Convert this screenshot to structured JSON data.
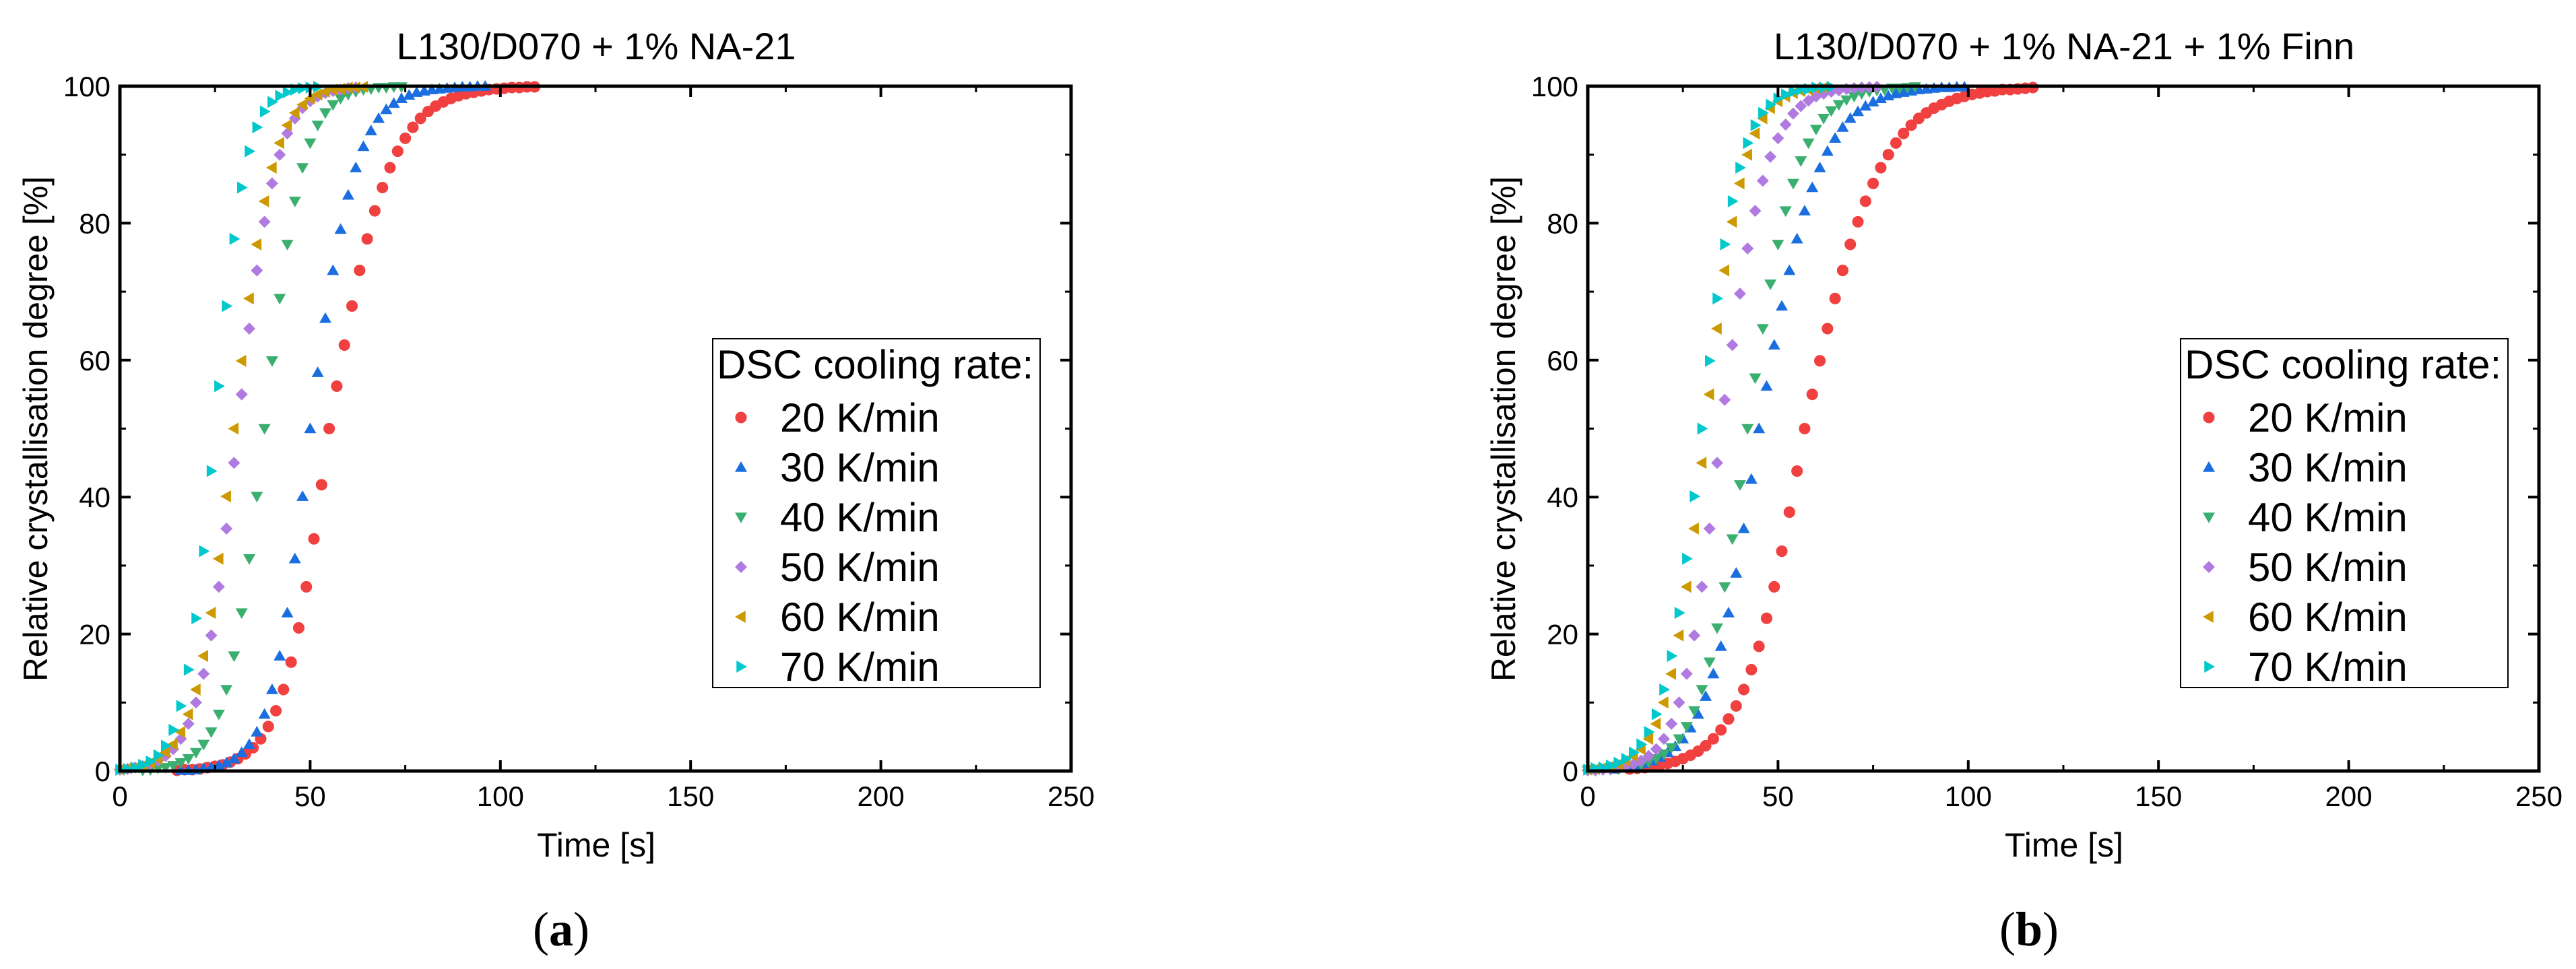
{
  "colors": {
    "20": "#f04040",
    "30": "#1a6ee0",
    "40": "#3aaf6f",
    "50": "#b07ae0",
    "60": "#cc9a00",
    "70": "#00c8cc"
  },
  "chart_data": [
    {
      "type": "scatter",
      "panel_label": "a",
      "title": "L130/D070 + 1% NA-21",
      "xlabel": "Time [s]",
      "ylabel": "Relative crystallisation degree [%]",
      "xlim": [
        0,
        250
      ],
      "ylim": [
        0,
        100
      ],
      "xticks": [
        "0",
        "50",
        "100",
        "150",
        "200",
        "250"
      ],
      "yticks": [
        "0",
        "20",
        "40",
        "60",
        "80",
        "100"
      ],
      "grid": false,
      "legend_title": "DSC cooling rate:",
      "legend_position": "center-right",
      "series": [
        {
          "name": "20 K/min",
          "marker": "circle",
          "color_key": "20",
          "x_start": 15,
          "x_step": 2,
          "y": [
            0.1,
            0.2,
            0.2,
            0.3,
            0.5,
            0.7,
            0.9,
            1.3,
            1.8,
            2.5,
            3.4,
            4.7,
            6.5,
            8.8,
            11.9,
            15.9,
            20.9,
            26.9,
            33.9,
            41.8,
            50,
            56.2,
            62.2,
            67.9,
            73.1,
            77.7,
            81.8,
            85.2,
            88.1,
            90.5,
            92.4,
            94.0,
            95.3,
            96.3,
            97.1,
            97.7,
            98.2,
            98.6,
            98.9,
            99.1,
            99.3,
            99.5,
            99.6,
            99.7,
            99.8,
            99.8,
            99.9,
            99.9
          ]
        },
        {
          "name": "30 K/min",
          "marker": "triangle-up",
          "color_key": "30",
          "x_start": 16,
          "x_step": 2,
          "y": [
            0.1,
            0.1,
            0.2,
            0.4,
            0.5,
            0.8,
            1.2,
            1.8,
            2.7,
            3.9,
            5.7,
            8.3,
            11.9,
            16.8,
            23.1,
            31.0,
            40.1,
            50,
            58.2,
            66.1,
            73.1,
            79.1,
            84.1,
            88.1,
            91.2,
            93.5,
            95.3,
            96.6,
            97.5,
            98.2,
            98.7,
            99.1,
            99.3,
            99.5,
            99.6,
            99.7,
            99.8,
            99.9,
            99.9,
            100,
            100
          ]
        },
        {
          "name": "40 K/min",
          "marker": "triangle-down",
          "color_key": "40",
          "x_start": 6,
          "x_step": 2,
          "y": [
            0.1,
            0.2,
            0.4,
            0.5,
            0.8,
            1.2,
            1.8,
            2.7,
            3.9,
            5.7,
            8.3,
            11.9,
            16.8,
            23.1,
            31.0,
            40.1,
            50,
            59.9,
            69.0,
            76.9,
            83.2,
            88.1,
            91.7,
            94.3,
            96.1,
            97.3,
            98.2,
            98.8,
            99.2,
            99.5,
            99.6,
            99.8,
            99.8,
            99.9,
            99.9
          ]
        },
        {
          "name": "50 K/min",
          "marker": "diamond",
          "color_key": "50",
          "x_start": 0,
          "x_step": 2,
          "y": [
            0.2,
            0.3,
            0.5,
            0.7,
            1.0,
            1.5,
            2.2,
            3.2,
            4.7,
            6.9,
            10.0,
            14.2,
            19.8,
            26.9,
            35.4,
            45.0,
            55.0,
            64.6,
            73.1,
            80.2,
            85.8,
            90.0,
            93.1,
            95.3,
            96.8,
            97.8,
            98.5,
            99.0,
            99.3,
            99.5,
            99.7,
            99.8
          ]
        },
        {
          "name": "60 K/min",
          "marker": "triangle-left",
          "color_key": "60",
          "x_start": 0,
          "x_step": 2,
          "y": [
            0.2,
            0.4,
            0.5,
            0.8,
            1.2,
            1.8,
            2.7,
            3.9,
            5.7,
            8.3,
            11.9,
            16.8,
            23.1,
            31.0,
            40.1,
            50,
            59.9,
            69.0,
            76.9,
            83.2,
            88.1,
            91.7,
            94.3,
            96.1,
            97.3,
            98.2,
            98.8,
            99.2,
            99.5,
            99.6,
            99.8,
            99.8,
            99.9
          ]
        },
        {
          "name": "70 K/min",
          "marker": "triangle-right",
          "color_key": "70",
          "x_start": 0,
          "x_step": 2,
          "y": [
            0.2,
            0.3,
            0.5,
            0.9,
            1.4,
            2.3,
            3.7,
            6.0,
            9.5,
            14.8,
            22.3,
            32.1,
            43.8,
            56.2,
            67.9,
            77.7,
            85.2,
            90.5,
            94.0,
            96.3,
            97.7,
            98.6,
            99.1,
            99.5,
            99.7,
            99.8,
            99.9
          ]
        }
      ]
    },
    {
      "type": "scatter",
      "panel_label": "b",
      "title": "L130/D070 + 1% NA-21 + 1% Finn",
      "xlabel": "Time [s]",
      "ylabel": "Relative crystallisation degree [%]",
      "xlim": [
        0,
        250
      ],
      "ylim": [
        0,
        100
      ],
      "xticks": [
        "0",
        "50",
        "100",
        "150",
        "200",
        "250"
      ],
      "yticks": [
        "0",
        "20",
        "40",
        "60",
        "80",
        "100"
      ],
      "grid": false,
      "legend_title": "DSC cooling rate:",
      "legend_position": "center-right",
      "series": [
        {
          "name": "20 K/min",
          "marker": "circle",
          "color_key": "20",
          "x_start": 11,
          "x_step": 2,
          "y": [
            0.3,
            0.4,
            0.5,
            0.7,
            0.9,
            1.1,
            1.4,
            1.8,
            2.3,
            2.9,
            3.7,
            4.7,
            6.0,
            7.6,
            9.5,
            11.9,
            14.8,
            18.2,
            22.3,
            26.9,
            32.1,
            37.8,
            43.8,
            50,
            55.0,
            59.9,
            64.6,
            69.0,
            73.1,
            76.9,
            80.2,
            83.2,
            85.8,
            88.1,
            90.0,
            91.7,
            93.1,
            94.3,
            95.3,
            96.1,
            96.8,
            97.3,
            97.8,
            98.2,
            98.5,
            98.8,
            99.0,
            99.2,
            99.3,
            99.5,
            99.5,
            99.6,
            99.7,
            99.8
          ]
        },
        {
          "name": "30 K/min",
          "marker": "triangle-up",
          "color_key": "30",
          "x_start": 7,
          "x_step": 2,
          "y": [
            0.3,
            0.5,
            0.6,
            0.8,
            1.1,
            1.5,
            2.0,
            2.7,
            3.6,
            4.7,
            6.3,
            8.3,
            10.9,
            14.2,
            18.2,
            23.1,
            28.9,
            35.4,
            42.6,
            50,
            56.2,
            62.2,
            67.9,
            73.1,
            77.7,
            81.8,
            85.2,
            88.1,
            90.5,
            92.4,
            94.0,
            95.3,
            96.3,
            97.1,
            97.7,
            98.2,
            98.6,
            98.9,
            99.1,
            99.3,
            99.5,
            99.6,
            99.7,
            99.8,
            99.8,
            99.9,
            99.9
          ]
        },
        {
          "name": "40 K/min",
          "marker": "triangle-down",
          "color_key": "40",
          "x_start": 0,
          "x_step": 2,
          "y": [
            0.1,
            0.1,
            0.2,
            0.2,
            0.3,
            0.5,
            0.7,
            0.9,
            1.3,
            1.8,
            2.5,
            3.4,
            4.7,
            6.5,
            8.8,
            11.9,
            15.9,
            20.9,
            26.9,
            33.9,
            41.8,
            50,
            57.4,
            64.6,
            71.1,
            76.9,
            81.8,
            85.8,
            89.1,
            91.7,
            93.7,
            95.3,
            96.4,
            97.3,
            98.0,
            98.5,
            98.9,
            99.2,
            99.4,
            99.5,
            99.7,
            99.7,
            99.8,
            99.9
          ]
        },
        {
          "name": "50 K/min",
          "marker": "diamond",
          "color_key": "50",
          "x_start": 0,
          "x_step": 2,
          "y": [
            0.1,
            0.1,
            0.2,
            0.3,
            0.5,
            0.7,
            1.0,
            1.5,
            2.2,
            3.2,
            4.7,
            6.9,
            10.0,
            14.2,
            19.8,
            26.9,
            35.4,
            45.0,
            54.2,
            62.2,
            69.7,
            76.3,
            81.8,
            86.2,
            89.7,
            92.4,
            94.4,
            96.0,
            97.1,
            97.9,
            98.5,
            98.9,
            99.2,
            99.4,
            99.6,
            99.7,
            99.8,
            99.85,
            99.9
          ]
        },
        {
          "name": "60 K/min",
          "marker": "triangle-left",
          "color_key": "60",
          "x_start": 0,
          "x_step": 2,
          "y": [
            0.2,
            0.3,
            0.5,
            0.7,
            1.0,
            1.5,
            2.2,
            3.2,
            4.7,
            6.9,
            10.0,
            14.2,
            19.8,
            26.9,
            35.4,
            45.0,
            55.0,
            64.6,
            73.1,
            80.2,
            85.8,
            90.0,
            93.1,
            95.3,
            96.8,
            97.8,
            98.5,
            99.0,
            99.3,
            99.5,
            99.7,
            99.8
          ]
        },
        {
          "name": "70 K/min",
          "marker": "triangle-right",
          "color_key": "70",
          "x_start": 0,
          "x_step": 2,
          "y": [
            0.2,
            0.4,
            0.5,
            0.8,
            1.2,
            1.8,
            2.7,
            3.9,
            5.7,
            8.3,
            11.9,
            16.8,
            23.1,
            31.0,
            40.1,
            50,
            59.9,
            69.0,
            76.9,
            83.2,
            88.1,
            91.7,
            94.3,
            96.1,
            97.3,
            98.2,
            98.8,
            99.2,
            99.5,
            99.6,
            99.8,
            99.8,
            99.9
          ]
        }
      ]
    }
  ]
}
